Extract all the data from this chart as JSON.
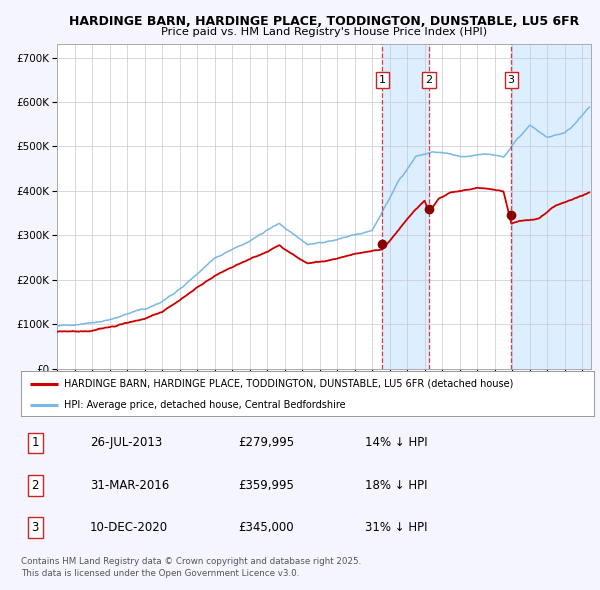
{
  "title1": "HARDINGE BARN, HARDINGE PLACE, TODDINGTON, DUNSTABLE, LU5 6FR",
  "title2": "Price paid vs. HM Land Registry's House Price Index (HPI)",
  "xlim_start": 1995.0,
  "xlim_end": 2025.5,
  "ylim_min": 0,
  "ylim_max": 730000,
  "yticks": [
    0,
    100000,
    200000,
    300000,
    400000,
    500000,
    600000,
    700000
  ],
  "ytick_labels": [
    "£0",
    "£100K",
    "£200K",
    "£300K",
    "£400K",
    "£500K",
    "£600K",
    "£700K"
  ],
  "bg_color": "#f5f5ff",
  "plot_bg": "#ffffff",
  "hpi_color": "#7ab8e8",
  "price_color": "#cc0000",
  "sale_marker_color": "#880000",
  "dashed_line_color": "#cc2222",
  "shade_color": "#ddeeff",
  "sale1_x": 2013.57,
  "sale1_y": 279995,
  "sale2_x": 2016.25,
  "sale2_y": 359995,
  "sale3_x": 2020.94,
  "sale3_y": 345000,
  "legend_text1": "HARDINGE BARN, HARDINGE PLACE, TODDINGTON, DUNSTABLE, LU5 6FR (detached house)",
  "legend_text2": "HPI: Average price, detached house, Central Bedfordshire",
  "table_rows": [
    [
      "1",
      "26-JUL-2013",
      "£279,995",
      "14% ↓ HPI"
    ],
    [
      "2",
      "31-MAR-2016",
      "£359,995",
      "18% ↓ HPI"
    ],
    [
      "3",
      "10-DEC-2020",
      "£345,000",
      "31% ↓ HPI"
    ]
  ],
  "footnote": "Contains HM Land Registry data © Crown copyright and database right 2025.\nThis data is licensed under the Open Government Licence v3.0."
}
